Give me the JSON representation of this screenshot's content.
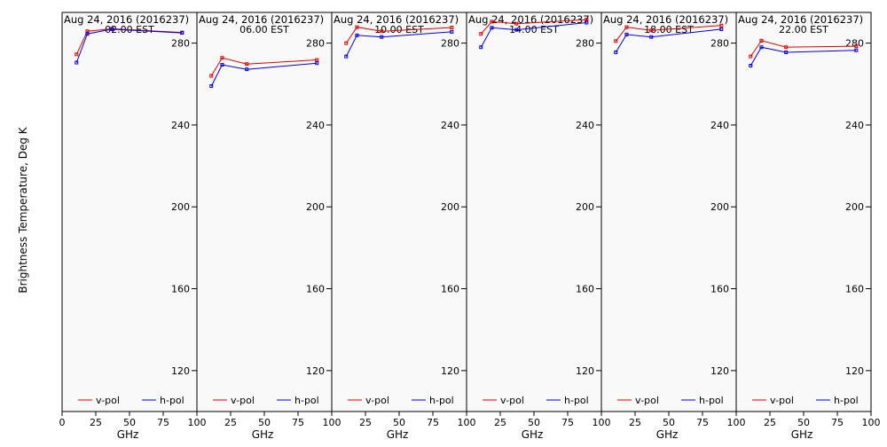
{
  "chart_data": {
    "type": "line",
    "ylabel": "Brightness Temperature, Deg K",
    "ylim": [
      100,
      295
    ],
    "yticks": [
      120,
      160,
      200,
      240,
      280
    ],
    "xticks": [
      0,
      25,
      50,
      75,
      100
    ],
    "grid": false,
    "legend_placement": "bottom",
    "series_styles": [
      {
        "name": "v-pol",
        "color": "#e00000"
      },
      {
        "name": "h-pol",
        "color": "#0000e0"
      }
    ],
    "panels": [
      {
        "title": "Aug 24, 2016 (2016237)",
        "subtitle": "02.00 EST",
        "xlabel": "GHz",
        "xlim": [
          0,
          100
        ],
        "x": [
          10.7,
          18.7,
          37.0,
          89.0
        ],
        "series": [
          {
            "name": "v-pol",
            "values": [
              274.5,
              285.8,
              287.0,
              285.2
            ]
          },
          {
            "name": "h-pol",
            "values": [
              270.5,
              284.5,
              286.8,
              285.0
            ]
          }
        ]
      },
      {
        "title": "Aug 24, 2016 (2016237)",
        "subtitle": "06.00 EST",
        "xlabel": "GHz",
        "xlim": [
          0,
          100
        ],
        "x": [
          10.7,
          18.7,
          37.0,
          89.0
        ],
        "series": [
          {
            "name": "v-pol",
            "values": [
              264.0,
              272.8,
              269.8,
              271.8
            ]
          },
          {
            "name": "h-pol",
            "values": [
              259.0,
              269.4,
              267.2,
              270.2
            ]
          }
        ]
      },
      {
        "title": "Aug 24, 2016 (2016237)",
        "subtitle": "10.00 EST",
        "xlabel": "GHz",
        "xlim": [
          0,
          100
        ],
        "x": [
          10.7,
          18.7,
          37.0,
          89.0
        ],
        "series": [
          {
            "name": "v-pol",
            "values": [
              280.0,
              287.8,
              285.8,
              287.6
            ]
          },
          {
            "name": "h-pol",
            "values": [
              273.5,
              283.8,
              283.0,
              285.5
            ]
          }
        ]
      },
      {
        "title": "Aug 24, 2016 (2016237)",
        "subtitle": "14.00 EST",
        "xlabel": "GHz",
        "xlim": [
          0,
          100
        ],
        "x": [
          10.7,
          18.7,
          37.0,
          89.0
        ],
        "series": [
          {
            "name": "v-pol",
            "values": [
              284.5,
              290.5,
              289.5,
              291.5
            ]
          },
          {
            "name": "h-pol",
            "values": [
              278.0,
              287.5,
              286.5,
              290.0
            ]
          }
        ]
      },
      {
        "title": "Aug 24, 2016 (2016237)",
        "subtitle": "18.00 EST",
        "xlabel": "GHz",
        "xlim": [
          0,
          100
        ],
        "x": [
          10.7,
          18.7,
          37.0,
          89.0
        ],
        "series": [
          {
            "name": "v-pol",
            "values": [
              281.0,
              287.8,
              286.2,
              288.6
            ]
          },
          {
            "name": "h-pol",
            "values": [
              275.5,
              284.2,
              283.0,
              286.8
            ]
          }
        ]
      },
      {
        "title": "Aug 24, 2016 (2016237)",
        "subtitle": "22.00 EST",
        "xlabel": "GHz",
        "xlim": [
          0,
          100
        ],
        "x": [
          10.7,
          18.7,
          37.0,
          89.0
        ],
        "series": [
          {
            "name": "v-pol",
            "values": [
              273.5,
              281.2,
              278.0,
              278.5
            ]
          },
          {
            "name": "h-pol",
            "values": [
              269.0,
              278.0,
              275.5,
              276.5
            ]
          }
        ]
      }
    ]
  }
}
